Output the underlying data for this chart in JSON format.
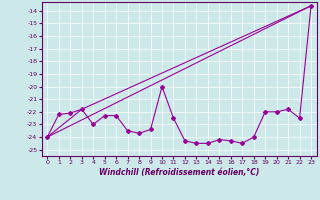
{
  "xlabel": "Windchill (Refroidissement éolien,°C)",
  "bg_color": "#cce8e8",
  "line_color": "#990099",
  "marker": "D",
  "markersize": 2,
  "linewidth": 0.8,
  "xlim": [
    -0.5,
    23.5
  ],
  "ylim": [
    -25.5,
    -13.3
  ],
  "yticks": [
    -14,
    -15,
    -16,
    -17,
    -18,
    -19,
    -20,
    -21,
    -22,
    -23,
    -24,
    -25
  ],
  "xticks": [
    0,
    1,
    2,
    3,
    4,
    5,
    6,
    7,
    8,
    9,
    10,
    11,
    12,
    13,
    14,
    15,
    16,
    17,
    18,
    19,
    20,
    21,
    22,
    23
  ],
  "series": [
    {
      "x": [
        0,
        1,
        2,
        3,
        4,
        5,
        6,
        7,
        8,
        9,
        10,
        11,
        12,
        13,
        14,
        15,
        16,
        17,
        18,
        19,
        20,
        21,
        22,
        23
      ],
      "y": [
        -24.0,
        -22.2,
        -22.1,
        -21.8,
        -23.0,
        -22.3,
        -22.3,
        -23.5,
        -23.7,
        -23.4,
        -20.0,
        -22.5,
        -24.3,
        -24.5,
        -24.5,
        -24.2,
        -24.3,
        -24.5,
        -24.0,
        -22.0,
        -22.0,
        -21.8,
        -22.5,
        -13.6
      ]
    },
    {
      "x": [
        0,
        23
      ],
      "y": [
        -24.0,
        -13.6
      ]
    },
    {
      "x": [
        0,
        3,
        23
      ],
      "y": [
        -24.0,
        -21.8,
        -13.6
      ]
    }
  ]
}
